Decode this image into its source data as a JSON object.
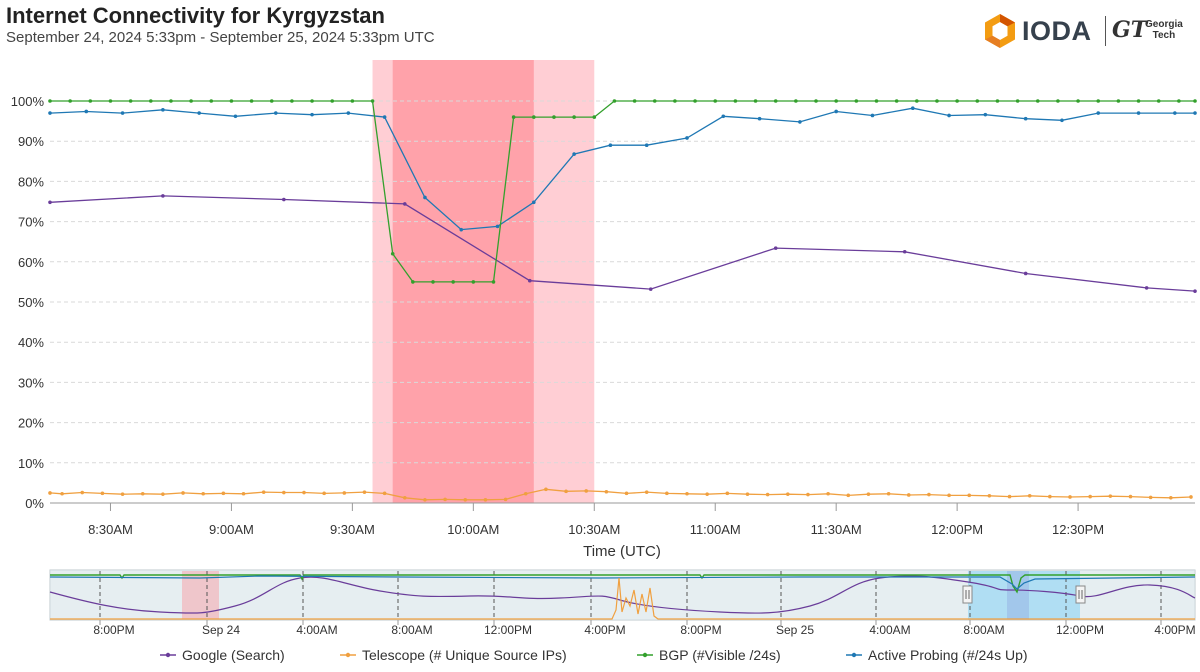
{
  "header": {
    "title": "Internet Connectivity for Kyrgyzstan",
    "subtitle": "September 24, 2024 5:33pm - September 25, 2024 5:33pm UTC"
  },
  "logo": {
    "brand": "IODA",
    "partner_mark": "GT",
    "partner_line1": "Georgia",
    "partner_line2": "Tech"
  },
  "colors": {
    "google": "#6a3d9a",
    "telescope": "#f0a040",
    "bgp": "#33a02c",
    "active_probing": "#1f78b4",
    "outage_strong": "#ff9aa2",
    "outage_light": "#ffc9cf",
    "navigator_select": "#8fd3f2"
  },
  "chart_data": [
    {
      "type": "line",
      "xlabel": "Time (UTC)",
      "ylabel": "",
      "ylim": [
        0,
        100
      ],
      "xlim": [
        495,
        779
      ],
      "yticks": [
        "0%",
        "10%",
        "20%",
        "30%",
        "40%",
        "50%",
        "60%",
        "70%",
        "80%",
        "90%",
        "100%"
      ],
      "xticks": [
        {
          "t": 510,
          "label": "8:30AM"
        },
        {
          "t": 540,
          "label": "9:00AM"
        },
        {
          "t": 570,
          "label": "9:30AM"
        },
        {
          "t": 600,
          "label": "10:00AM"
        },
        {
          "t": 630,
          "label": "10:30AM"
        },
        {
          "t": 660,
          "label": "11:00AM"
        },
        {
          "t": 690,
          "label": "11:30AM"
        },
        {
          "t": 720,
          "label": "12:00PM"
        },
        {
          "t": 750,
          "label": "12:30PM"
        }
      ],
      "outages": [
        {
          "start": 575,
          "end": 630,
          "level": "light"
        },
        {
          "start": 580,
          "end": 615,
          "level": "strong"
        }
      ],
      "series": [
        {
          "name": "Google (Search)",
          "key": "google",
          "x": [
            495,
            523,
            553,
            583,
            614,
            644,
            675,
            707,
            737,
            767,
            779
          ],
          "values": [
            74.8,
            76.4,
            75.5,
            74.4,
            55.3,
            53.2,
            63.4,
            62.5,
            57.1,
            53.5,
            52.7
          ]
        },
        {
          "name": "Telescope (# Unique Source IPs)",
          "key": "telescope",
          "x": [
            495,
            498,
            503,
            508,
            513,
            518,
            523,
            528,
            533,
            538,
            543,
            548,
            553,
            558,
            563,
            568,
            573,
            578,
            583,
            588,
            593,
            598,
            603,
            608,
            613,
            618,
            623,
            628,
            633,
            638,
            643,
            648,
            653,
            658,
            663,
            668,
            673,
            678,
            683,
            688,
            693,
            698,
            703,
            708,
            713,
            718,
            723,
            728,
            733,
            738,
            743,
            748,
            753,
            758,
            763,
            768,
            773,
            778
          ],
          "values": [
            2.5,
            2.3,
            2.6,
            2.4,
            2.2,
            2.3,
            2.2,
            2.5,
            2.3,
            2.4,
            2.3,
            2.7,
            2.6,
            2.6,
            2.4,
            2.5,
            2.7,
            2.4,
            1.3,
            0.8,
            0.9,
            0.8,
            0.8,
            0.9,
            2.3,
            3.4,
            2.9,
            3.0,
            2.8,
            2.4,
            2.7,
            2.4,
            2.3,
            2.2,
            2.4,
            2.2,
            2.1,
            2.2,
            2.1,
            2.3,
            1.9,
            2.2,
            2.3,
            2.0,
            2.1,
            1.9,
            1.9,
            1.8,
            1.6,
            1.8,
            1.6,
            1.5,
            1.6,
            1.7,
            1.6,
            1.4,
            1.3,
            1.5
          ]
        },
        {
          "name": "BGP (#Visible /24s)",
          "key": "bgp",
          "x": [
            495,
            500,
            505,
            510,
            515,
            520,
            525,
            530,
            535,
            540,
            545,
            550,
            555,
            560,
            565,
            570,
            575,
            580,
            585,
            590,
            595,
            600,
            605,
            610,
            615,
            620,
            625,
            630,
            635,
            640,
            645,
            650,
            655,
            660,
            665,
            670,
            675,
            680,
            685,
            690,
            695,
            700,
            705,
            710,
            715,
            720,
            725,
            730,
            735,
            740,
            745,
            750,
            755,
            760,
            765,
            770,
            775,
            779
          ],
          "values": [
            100,
            100,
            100,
            100,
            100,
            100,
            100,
            100,
            100,
            100,
            100,
            100,
            100,
            100,
            100,
            100,
            100,
            62,
            55,
            55,
            55,
            55,
            55,
            96,
            96,
            96,
            96,
            96,
            100,
            100,
            100,
            100,
            100,
            100,
            100,
            100,
            100,
            100,
            100,
            100,
            100,
            100,
            100,
            100,
            100,
            100,
            100,
            100,
            100,
            100,
            100,
            100,
            100,
            100,
            100,
            100,
            100,
            100
          ]
        },
        {
          "name": "Active Probing (#/24s Up)",
          "key": "active_probing",
          "x": [
            495,
            504,
            513,
            523,
            532,
            541,
            551,
            560,
            569,
            578,
            588,
            597,
            606,
            615,
            625,
            634,
            643,
            653,
            662,
            671,
            681,
            690,
            699,
            709,
            718,
            727,
            737,
            746,
            755,
            765,
            774,
            779
          ],
          "values": [
            97.0,
            97.4,
            97.0,
            97.8,
            97.0,
            96.2,
            97.0,
            96.6,
            97.0,
            96.0,
            76.0,
            68.0,
            68.8,
            74.8,
            86.8,
            89.0,
            89.0,
            90.8,
            96.2,
            95.6,
            94.8,
            97.4,
            96.4,
            98.2,
            96.4,
            96.6,
            95.6,
            95.2,
            97.0,
            97.0,
            97.0,
            97.0
          ]
        }
      ]
    },
    {
      "type": "line",
      "title": "navigator",
      "xticks": [
        "8:00PM",
        "Sep 24",
        "4:00AM",
        "8:00AM",
        "12:00PM",
        "4:00PM",
        "8:00PM",
        "Sep 25",
        "4:00AM",
        "8:00AM",
        "12:00PM",
        "4:00PM"
      ],
      "selection_ticks": [
        "8:00AM",
        "12:00PM"
      ]
    }
  ]
}
